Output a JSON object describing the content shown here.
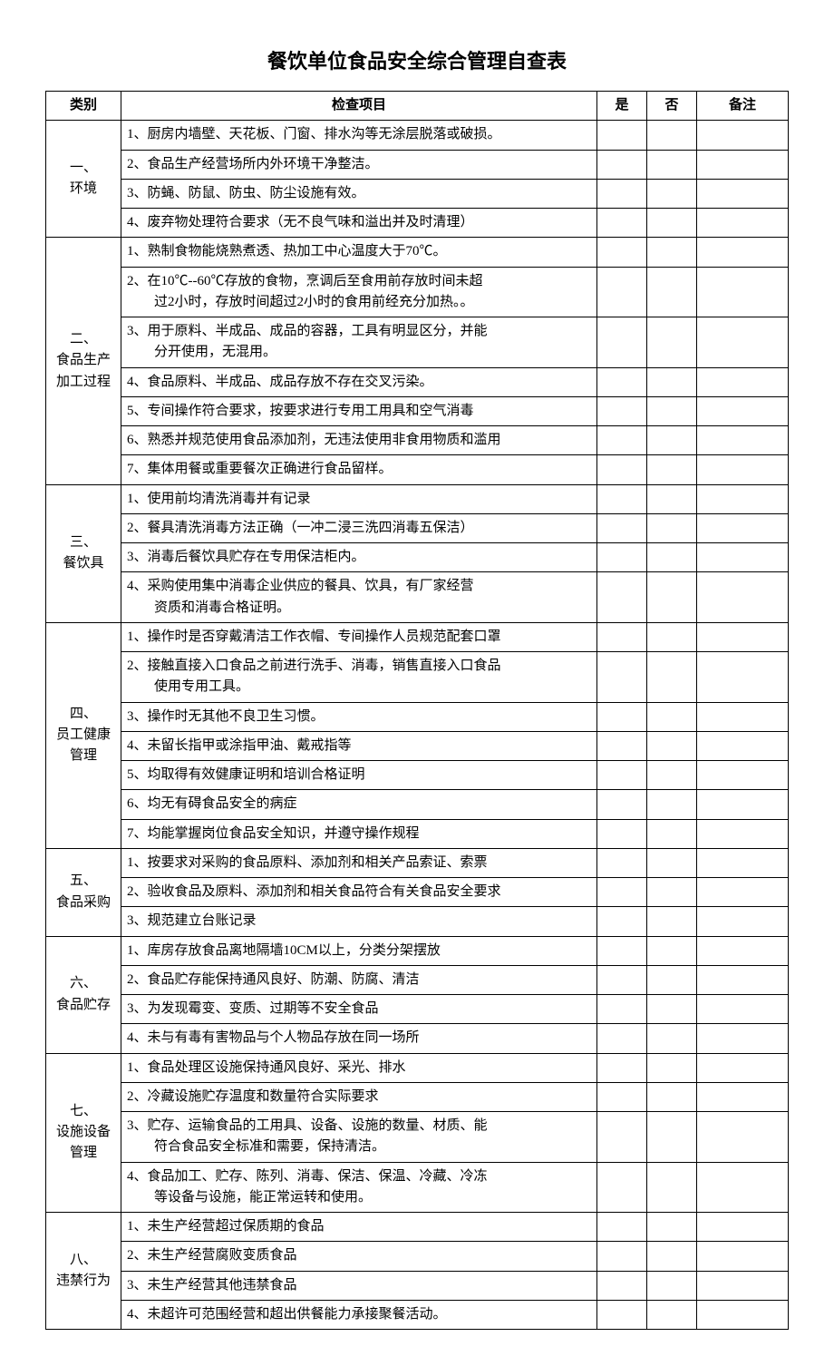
{
  "title": "餐饮单位食品安全综合管理自查表",
  "headers": {
    "category": "类别",
    "item": "检查项目",
    "yes": "是",
    "no": "否",
    "note": "备注"
  },
  "sections": [
    {
      "category": "一、\n环境",
      "items": [
        "1、厨房内墙壁、天花板、门窗、排水沟等无涂层脱落或破损。",
        "2、食品生产经营场所内外环境干净整洁。",
        "3、防蝇、防鼠、防虫、防尘设施有效。",
        "4、废弃物处理符合要求（无不良气味和溢出并及时清理）"
      ]
    },
    {
      "category": "二、\n食品生产\n加工过程",
      "items": [
        "1、熟制食物能烧熟煮透、热加工中心温度大于70℃。",
        "2、在10℃--60℃存放的食物，烹调后至食用前存放时间未超\n过2小时，存放时间超过2小时的食用前经充分加热。。",
        "3、用于原料、半成品、成品的容器，工具有明显区分，并能\n分开使用，无混用。",
        "4、食品原料、半成品、成品存放不存在交叉污染。",
        "5、专间操作符合要求，按要求进行专用工用具和空气消毒",
        "6、熟悉并规范使用食品添加剂，无违法使用非食用物质和滥用",
        "7、集体用餐或重要餐次正确进行食品留样。"
      ]
    },
    {
      "category": "三、\n餐饮具",
      "items": [
        "1、使用前均清洗消毒并有记录",
        "2、餐具清洗消毒方法正确（一冲二浸三洗四消毒五保洁）",
        "3、消毒后餐饮具贮存在专用保洁柜内。",
        "4、采购使用集中消毒企业供应的餐具、饮具，有厂家经营\n资质和消毒合格证明。"
      ]
    },
    {
      "category": "四、\n员工健康\n管理",
      "items": [
        "1、操作时是否穿戴清洁工作衣帽、专间操作人员规范配套口罩",
        "2、接触直接入口食品之前进行洗手、消毒，销售直接入口食品\n使用专用工具。",
        "3、操作时无其他不良卫生习惯。",
        "4、未留长指甲或涂指甲油、戴戒指等",
        "5、均取得有效健康证明和培训合格证明",
        "6、均无有碍食品安全的病症",
        "7、均能掌握岗位食品安全知识，并遵守操作规程"
      ]
    },
    {
      "category": "五、\n食品采购",
      "items": [
        "1、按要求对采购的食品原料、添加剂和相关产品索证、索票",
        "2、验收食品及原料、添加剂和相关食品符合有关食品安全要求",
        "3、规范建立台账记录"
      ]
    },
    {
      "category": "六、\n食品贮存",
      "items": [
        "1、库房存放食品离地隔墙10CM以上，分类分架摆放",
        "2、食品贮存能保持通风良好、防潮、防腐、清洁",
        "3、为发现霉变、变质、过期等不安全食品",
        "4、未与有毒有害物品与个人物品存放在同一场所"
      ]
    },
    {
      "category": "七、\n设施设备\n管理",
      "items": [
        "1、食品处理区设施保持通风良好、采光、排水",
        "2、冷藏设施贮存温度和数量符合实际要求",
        "3、贮存、运输食品的工用具、设备、设施的数量、材质、能\n符合食品安全标准和需要，保持清洁。",
        "4、食品加工、贮存、陈列、消毒、保洁、保温、冷藏、冷冻\n等设备与设施，能正常运转和使用。"
      ]
    },
    {
      "category": "八、\n违禁行为",
      "items": [
        "1、未生产经营超过保质期的食品",
        "2、未生产经营腐败变质食品",
        "3、未生产经营其他违禁食品",
        "4、未超许可范围经营和超出供餐能力承接聚餐活动。"
      ]
    }
  ]
}
